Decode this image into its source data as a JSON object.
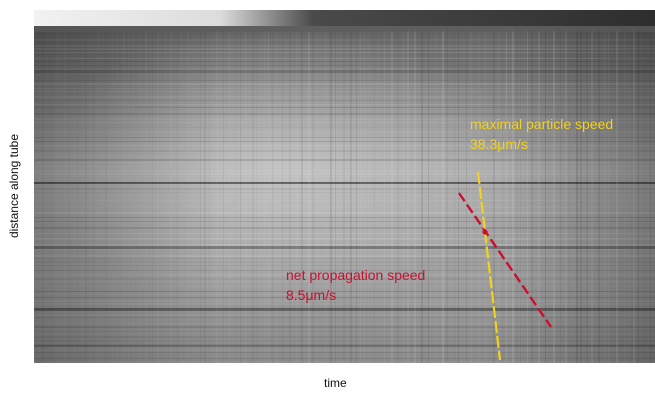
{
  "labels": {
    "y_axis": "distance along tube",
    "x_axis": "time"
  },
  "annotations": {
    "particle": {
      "title": "maximal particle speed",
      "value": "38.3μm/s",
      "color": "#f2d21e"
    },
    "propagation": {
      "title": "net propagation speed",
      "value": "8.5μm/s",
      "color": "#c8102e"
    }
  }
}
